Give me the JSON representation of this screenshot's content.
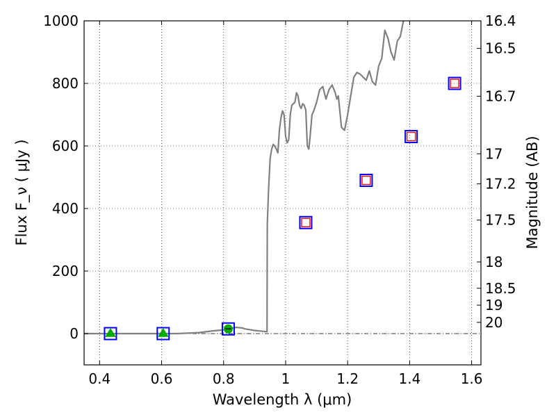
{
  "chart_data": {
    "type": "line",
    "xlabel": "Wavelength  λ (μm)",
    "ylabel": "Flux  F_ν  ( μJy )",
    "ylabel_right": "Magnitude (AB)",
    "xlim": [
      0.35,
      1.63
    ],
    "ylim": [
      -100,
      1000
    ],
    "grid": true,
    "x_ticks": [
      0.4,
      0.6,
      0.8,
      1.0,
      1.2,
      1.4,
      1.6
    ],
    "x_tick_labels": [
      "0.4",
      "0.6",
      "0.8",
      "1",
      "1.2",
      "1.4",
      "1.6"
    ],
    "y_ticks": [
      0,
      200,
      400,
      600,
      800,
      1000
    ],
    "y_tick_labels": [
      "0",
      "200",
      "400",
      "600",
      "800",
      "1000"
    ],
    "right_ticks": [
      {
        "label": "16.4",
        "flux": 1000
      },
      {
        "label": "16.5",
        "flux": 912
      },
      {
        "label": "16.7",
        "flux": 759
      },
      {
        "label": "17",
        "flux": 575
      },
      {
        "label": "17.2",
        "flux": 479
      },
      {
        "label": "17.5",
        "flux": 363
      },
      {
        "label": "18",
        "flux": 229
      },
      {
        "label": "18.5",
        "flux": 145
      },
      {
        "label": "19",
        "flux": 91
      },
      {
        "label": "20",
        "flux": 36
      }
    ],
    "series": [
      {
        "type": "line",
        "color": "#808080",
        "x": [
          0.35,
          0.45,
          0.55,
          0.65,
          0.72,
          0.76,
          0.8,
          0.84,
          0.86,
          0.87,
          0.9,
          0.92,
          0.94,
          0.941,
          0.945,
          0.95,
          0.955,
          0.96,
          0.965,
          0.97,
          0.975,
          0.98,
          0.985,
          0.99,
          0.995,
          1.0,
          1.005,
          1.01,
          1.015,
          1.02,
          1.03,
          1.035,
          1.04,
          1.045,
          1.05,
          1.055,
          1.06,
          1.065,
          1.07,
          1.075,
          1.08,
          1.085,
          1.09,
          1.1,
          1.11,
          1.12,
          1.125,
          1.13,
          1.14,
          1.15,
          1.16,
          1.165,
          1.17,
          1.18,
          1.185,
          1.19,
          1.2,
          1.21,
          1.22,
          1.23,
          1.24,
          1.25,
          1.26,
          1.27,
          1.28,
          1.29,
          1.3,
          1.31,
          1.32,
          1.33,
          1.34,
          1.35,
          1.36,
          1.37,
          1.375,
          1.38
        ],
        "y": [
          0,
          0,
          0,
          0,
          3,
          8,
          12,
          20,
          18,
          15,
          10,
          8,
          6,
          350,
          460,
          560,
          590,
          605,
          600,
          590,
          578,
          650,
          690,
          712,
          700,
          630,
          610,
          620,
          700,
          730,
          740,
          770,
          760,
          730,
          720,
          735,
          730,
          715,
          600,
          590,
          640,
          700,
          710,
          740,
          780,
          790,
          770,
          750,
          780,
          795,
          770,
          750,
          760,
          660,
          655,
          650,
          700,
          760,
          820,
          835,
          830,
          820,
          810,
          840,
          805,
          795,
          855,
          880,
          970,
          945,
          900,
          875,
          935,
          950,
          975,
          1000
        ]
      },
      {
        "type": "markers",
        "marker": "open-square",
        "color": "#0000ff",
        "x": [
          0.435,
          0.605,
          0.815,
          1.065,
          1.26,
          1.405,
          1.545
        ],
        "y": [
          0,
          0,
          15,
          355,
          490,
          630,
          800
        ]
      },
      {
        "type": "markers",
        "marker": "open-square",
        "color": "#ff0000",
        "x": [
          1.065,
          1.26,
          1.405,
          1.545
        ],
        "y": [
          355,
          490,
          630,
          800
        ]
      },
      {
        "type": "markers",
        "marker": "filled-triangle",
        "color": "#00aa00",
        "x": [
          0.435,
          0.605
        ],
        "y": [
          0,
          0
        ]
      },
      {
        "type": "markers",
        "marker": "filled-circle",
        "color": "#00aa00",
        "x": [
          0.815
        ],
        "y": [
          15
        ]
      }
    ]
  }
}
